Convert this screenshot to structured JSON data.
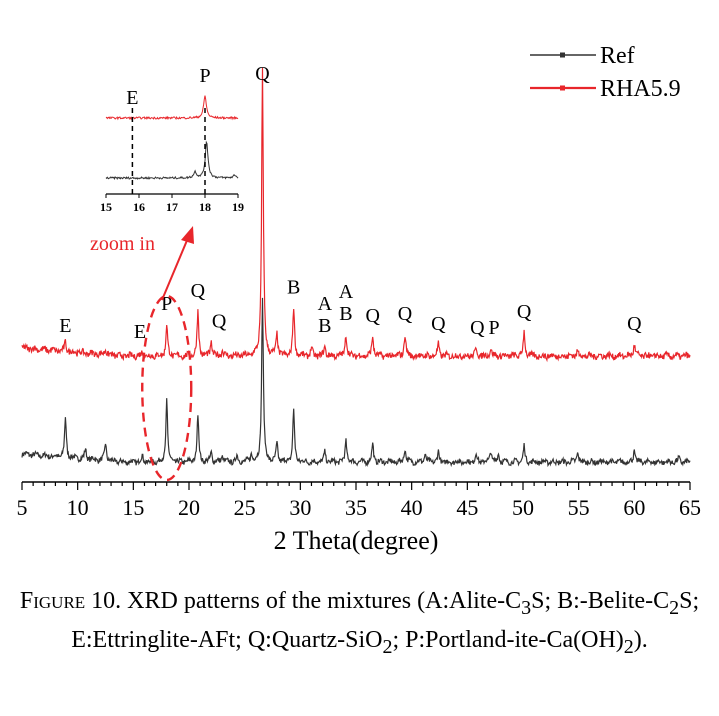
{
  "chart_data": {
    "type": "line",
    "xlabel": "2 Theta(degree)",
    "ylabel": "",
    "xlim": [
      5,
      65
    ],
    "xticks": [
      5,
      10,
      15,
      20,
      25,
      30,
      35,
      40,
      45,
      50,
      55,
      60,
      65
    ],
    "grid": false,
    "legend_position": "top-right",
    "colors": {
      "Ref": "#333333",
      "RHA5.9": "#e8262b",
      "highlight": "#e8262b"
    },
    "series": [
      {
        "name": "Ref",
        "baseline": 0,
        "peaks": [
          {
            "x": 8.9,
            "h": 40
          },
          {
            "x": 10.7,
            "h": 10
          },
          {
            "x": 12.5,
            "h": 18
          },
          {
            "x": 15.8,
            "h": 6
          },
          {
            "x": 18.0,
            "h": 62
          },
          {
            "x": 20.8,
            "h": 48
          },
          {
            "x": 22.0,
            "h": 10
          },
          {
            "x": 23.0,
            "h": 6
          },
          {
            "x": 24.3,
            "h": 6
          },
          {
            "x": 25.6,
            "h": 8
          },
          {
            "x": 26.6,
            "h": 165
          },
          {
            "x": 27.9,
            "h": 18
          },
          {
            "x": 29.4,
            "h": 52
          },
          {
            "x": 32.2,
            "h": 10
          },
          {
            "x": 34.1,
            "h": 22
          },
          {
            "x": 36.5,
            "h": 18
          },
          {
            "x": 39.4,
            "h": 14
          },
          {
            "x": 41.2,
            "h": 8
          },
          {
            "x": 42.4,
            "h": 10
          },
          {
            "x": 45.8,
            "h": 8
          },
          {
            "x": 47.1,
            "h": 12
          },
          {
            "x": 47.8,
            "h": 8
          },
          {
            "x": 50.1,
            "h": 16
          },
          {
            "x": 54.9,
            "h": 10
          },
          {
            "x": 60.0,
            "h": 12
          },
          {
            "x": 64.0,
            "h": 4
          }
        ]
      },
      {
        "name": "RHA5.9",
        "baseline": 1,
        "peaks": [
          {
            "x": 8.9,
            "h": 10
          },
          {
            "x": 12.5,
            "h": 6
          },
          {
            "x": 15.8,
            "h": 4
          },
          {
            "x": 18.0,
            "h": 32
          },
          {
            "x": 20.8,
            "h": 45
          },
          {
            "x": 22.0,
            "h": 14
          },
          {
            "x": 23.0,
            "h": 6
          },
          {
            "x": 26.6,
            "h": 285
          },
          {
            "x": 27.9,
            "h": 22
          },
          {
            "x": 29.4,
            "h": 48
          },
          {
            "x": 31.0,
            "h": 8
          },
          {
            "x": 32.2,
            "h": 10
          },
          {
            "x": 34.1,
            "h": 22
          },
          {
            "x": 36.5,
            "h": 20
          },
          {
            "x": 39.4,
            "h": 22
          },
          {
            "x": 42.4,
            "h": 12
          },
          {
            "x": 45.8,
            "h": 8
          },
          {
            "x": 47.1,
            "h": 8
          },
          {
            "x": 50.1,
            "h": 24
          },
          {
            "x": 54.9,
            "h": 6
          },
          {
            "x": 60.0,
            "h": 12
          }
        ]
      }
    ],
    "peak_labels": [
      {
        "text": "E",
        "x": 8.9
      },
      {
        "text": "E",
        "x": 15.8
      },
      {
        "text": "P",
        "x": 18.0
      },
      {
        "text": "Q",
        "x": 20.8
      },
      {
        "text": "Q",
        "x": 22.0
      },
      {
        "text": "Q",
        "x": 26.6
      },
      {
        "text": "B",
        "x": 29.4
      },
      {
        "text": "A",
        "x": 32.2
      },
      {
        "text": "B",
        "x": 32.2
      },
      {
        "text": "A",
        "x": 34.1
      },
      {
        "text": "B",
        "x": 34.1
      },
      {
        "text": "Q",
        "x": 36.5
      },
      {
        "text": "Q",
        "x": 39.4
      },
      {
        "text": "Q",
        "x": 42.4
      },
      {
        "text": "Q",
        "x": 45.8
      },
      {
        "text": "P",
        "x": 47.1
      },
      {
        "text": "Q",
        "x": 50.1
      },
      {
        "text": "Q",
        "x": 60.0
      }
    ],
    "zoom_region": [
      15.8,
      20.2
    ],
    "zoom_annotation": "zoom in",
    "inset": {
      "xlim": [
        15,
        19
      ],
      "xticks": [
        15,
        16,
        17,
        18,
        19
      ],
      "markers": [
        {
          "text": "E",
          "x": 15.8
        },
        {
          "text": "P",
          "x": 18.0
        }
      ],
      "peaks": {
        "Ref": [
          {
            "x": 17.7,
            "h": 6
          },
          {
            "x": 18.05,
            "h": 36
          },
          {
            "x": 18.9,
            "h": 3
          }
        ],
        "RHA5.9": [
          {
            "x": 18.0,
            "h": 22
          }
        ]
      }
    }
  },
  "caption": {
    "label": "Figure 10.",
    "parts": [
      " XRD patterns of the mixtures (A:Alite-C",
      "3",
      "S; B:-Belite-C",
      "2",
      "S; E:Ettringlite-AFt; Q:Quartz-SiO",
      "2",
      "; P:Portland-ite-Ca(OH)",
      "2",
      ")."
    ]
  }
}
